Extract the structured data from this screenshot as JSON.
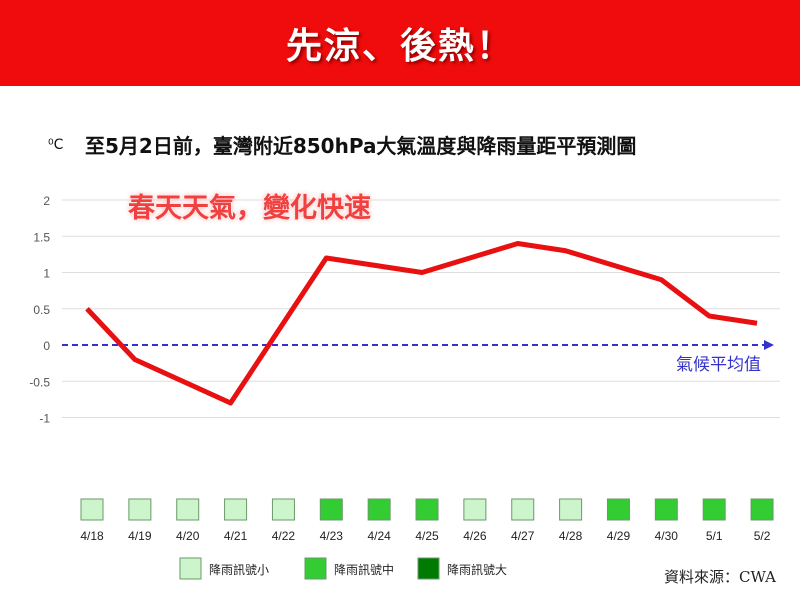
{
  "banner": {
    "text": "先涼、後熱！"
  },
  "chart_data": {
    "type": "line",
    "title": "至5月2日前，臺灣附近850hPa大氣溫度與降雨量距平預測圖",
    "ylabel": "⁰C",
    "ylim": [
      -1,
      2
    ],
    "yticks": [
      "2",
      "1.5",
      "1",
      "0.5",
      "0",
      "-0.5",
      "-1"
    ],
    "yticks_values": [
      2,
      1.5,
      1,
      0.5,
      0,
      -0.5,
      -1
    ],
    "categories": [
      "4/18",
      "4/19",
      "4/20",
      "4/21",
      "4/22",
      "4/23",
      "4/24",
      "4/25",
      "4/26",
      "4/27",
      "4/28",
      "4/29",
      "4/30",
      "5/1",
      "5/2"
    ],
    "series": [
      {
        "values": [
          0.5,
          -0.2,
          -0.5,
          -0.8,
          0.2,
          1.2,
          1.1,
          1.0,
          1.2,
          1.4,
          1.3,
          1.1,
          0.9,
          0.4,
          0.3
        ],
        "color": "#e81010"
      }
    ],
    "reference_line": {
      "value": 0,
      "label": "氣候平均值",
      "color": "#3333cc",
      "style": "dashed"
    },
    "annotation": "春天天氣，變化快速",
    "rain_signal": [
      "small",
      "small",
      "small",
      "small",
      "small",
      "medium",
      "medium",
      "medium",
      "small",
      "small",
      "small",
      "medium",
      "medium",
      "medium",
      "medium"
    ],
    "legend": [
      {
        "key": "small",
        "label": "降雨訊號小",
        "color": "#ccf5cc"
      },
      {
        "key": "medium",
        "label": "降雨訊號中",
        "color": "#33cc33"
      },
      {
        "key": "large",
        "label": "降雨訊號大",
        "color": "#007a00"
      }
    ],
    "grid": true
  },
  "source": "資料來源：CWA"
}
